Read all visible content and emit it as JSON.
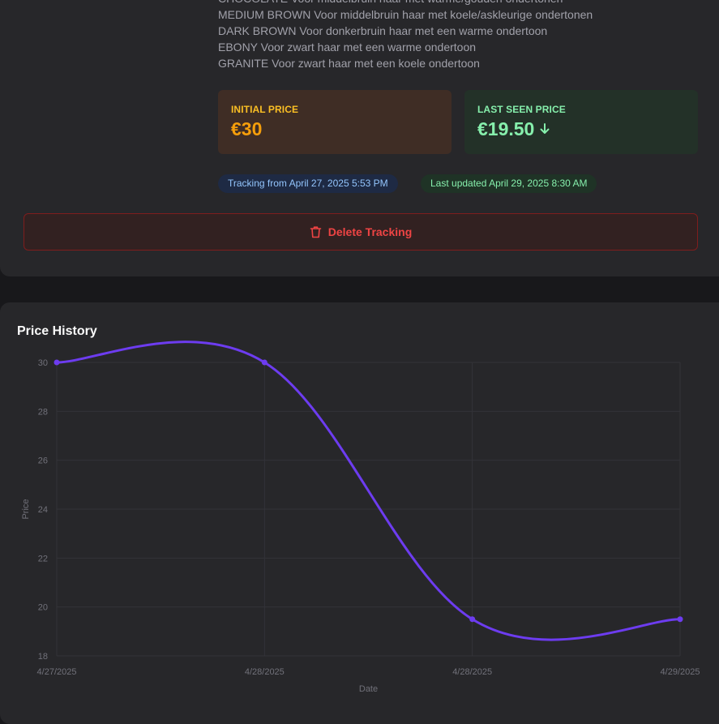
{
  "product": {
    "description_lines": [
      "CHOCOLATE Voor middelbruin haar met warme/gouden ondertonen",
      "MEDIUM BROWN Voor middelbruin haar met koele/askleurige ondertonen",
      "DARK BROWN Voor donkerbruin haar met een warme ondertoon",
      "EBONY Voor zwart haar met een warme ondertoon",
      "GRANITE Voor zwart haar met een koele ondertoon"
    ]
  },
  "prices": {
    "initial_label": "INITIAL PRICE",
    "initial_value": "€30",
    "last_label": "LAST SEEN PRICE",
    "last_value": "€19.50",
    "last_trend_icon": "arrow-down-icon"
  },
  "badges": {
    "tracking": "Tracking from April 27, 2025 5:53 PM",
    "updated": "Last updated April 29, 2025 8:30 AM"
  },
  "actions": {
    "delete_label": "Delete Tracking",
    "delete_icon": "trash-icon"
  },
  "colors": {
    "accent_line": "#6d3cf0",
    "initial_price": "#f59e0b",
    "last_price": "#86efac",
    "danger": "#ef4444"
  },
  "history": {
    "title": "Price History"
  },
  "chart_data": {
    "type": "line",
    "x": [
      "4/27/2025",
      "4/28/2025",
      "4/28/2025",
      "4/29/2025"
    ],
    "values": [
      30,
      30,
      19.5,
      19.5
    ],
    "xlabel": "Date",
    "ylabel": "Price",
    "ylim": [
      18,
      30
    ],
    "yticks": [
      30,
      28,
      26,
      24,
      22,
      20,
      18
    ],
    "grid": true,
    "legend": "none"
  }
}
